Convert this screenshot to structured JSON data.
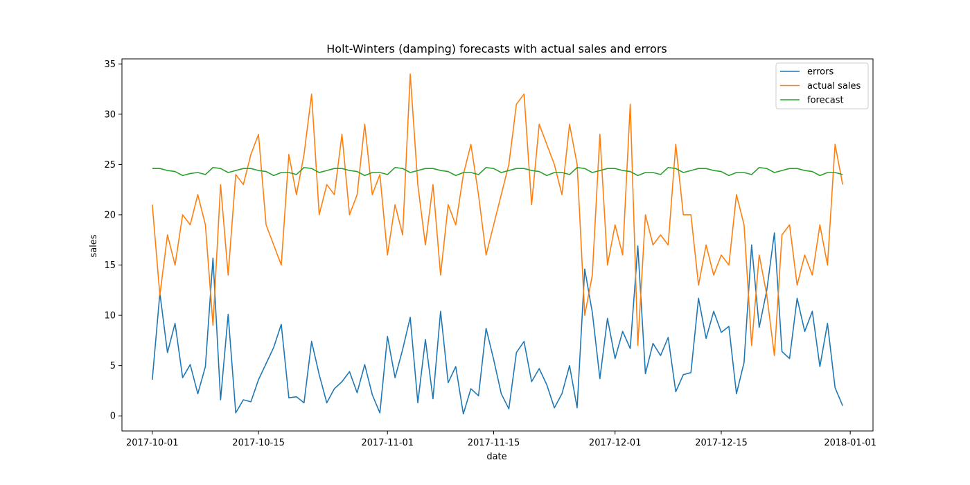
{
  "chart_data": {
    "type": "line",
    "title": "Holt-Winters (damping) forecasts with actual sales and errors",
    "xlabel": "date",
    "ylabel": "sales",
    "xlim": [
      "2017-09-27",
      "2018-01-04"
    ],
    "ylim": [
      -1.5,
      35.5
    ],
    "x_ticks": [
      "2017-10-01",
      "2017-10-15",
      "2017-11-01",
      "2017-11-15",
      "2017-12-01",
      "2017-12-15",
      "2018-01-01"
    ],
    "y_ticks": [
      0,
      5,
      10,
      15,
      20,
      25,
      30,
      35
    ],
    "legend_position": "top-right",
    "x_start": "2017-10-01",
    "x_step_days": 1,
    "series": [
      {
        "name": "errors",
        "color": "#1f77b4",
        "values": [
          3.6,
          12.2,
          6.3,
          9.2,
          3.8,
          5.1,
          2.2,
          4.9,
          15.7,
          1.6,
          10.1,
          0.3,
          1.6,
          1.4,
          3.6,
          5.2,
          6.8,
          9.1,
          1.8,
          1.9,
          1.3,
          7.4,
          4.1,
          1.3,
          2.7,
          3.4,
          4.4,
          2.3,
          5.1,
          2.1,
          0.3,
          7.9,
          3.8,
          6.6,
          9.8,
          1.3,
          7.6,
          1.7,
          10.4,
          3.3,
          4.9,
          0.2,
          2.7,
          2.0,
          8.7,
          5.6,
          2.2,
          0.7,
          6.3,
          7.4,
          3.4,
          4.7,
          3.1,
          0.8,
          2.2,
          5.0,
          0.8,
          14.6,
          10.3,
          3.7,
          9.7,
          5.7,
          8.4,
          6.7,
          16.9,
          4.2,
          7.2,
          6.0,
          7.8,
          2.4,
          4.1,
          4.3,
          11.7,
          7.7,
          10.4,
          8.3,
          8.9,
          2.2,
          5.3,
          17.0,
          8.8,
          12.5,
          18.2,
          6.4,
          5.7,
          11.7,
          8.4,
          10.4,
          4.9,
          9.2,
          2.8,
          1.0
        ],
        "missing_note": ""
      },
      {
        "name": "actual sales",
        "color": "#ff7f0e",
        "values": [
          21,
          12,
          18,
          15,
          20,
          19,
          22,
          19,
          9,
          23,
          14,
          24,
          23,
          26,
          28,
          19,
          17,
          15,
          26,
          22,
          26,
          32,
          20,
          23,
          22,
          28,
          20,
          22,
          29,
          22,
          24,
          16,
          21,
          18,
          34,
          23,
          17,
          23,
          14,
          21,
          19,
          24,
          27,
          22,
          16,
          19,
          22,
          25,
          31,
          32,
          21,
          29,
          27,
          25,
          22,
          29,
          25,
          10,
          14,
          28,
          15,
          19,
          16,
          31,
          7,
          20,
          17,
          18,
          17,
          27,
          20,
          20,
          13,
          17,
          14,
          16,
          15,
          22,
          19,
          7,
          16,
          12,
          6,
          18,
          19,
          13,
          16,
          14,
          19,
          15,
          27,
          23
        ]
      },
      {
        "name": "forecast",
        "color": "#2ca02c",
        "values": [
          24.6,
          24.6,
          24.4,
          24.3,
          23.9,
          24.1,
          24.2,
          24.0,
          24.7,
          24.6,
          24.2,
          24.4,
          24.6,
          24.6,
          24.4,
          24.3,
          23.9,
          24.2,
          24.2,
          24.0,
          24.7,
          24.6,
          24.2,
          24.4,
          24.6,
          24.6,
          24.4,
          24.3,
          23.9,
          24.2,
          24.2,
          24.0,
          24.7,
          24.6,
          24.2,
          24.4,
          24.6,
          24.6,
          24.4,
          24.3,
          23.9,
          24.2,
          24.2,
          24.0,
          24.7,
          24.6,
          24.2,
          24.4,
          24.6,
          24.6,
          24.4,
          24.3,
          23.9,
          24.2,
          24.2,
          24.0,
          24.7,
          24.6,
          24.2,
          24.4,
          24.6,
          24.6,
          24.4,
          24.3,
          23.9,
          24.2,
          24.2,
          24.0,
          24.7,
          24.6,
          24.2,
          24.4,
          24.6,
          24.6,
          24.4,
          24.3,
          23.9,
          24.2,
          24.2,
          24.0,
          24.7,
          24.6,
          24.2,
          24.4,
          24.6,
          24.6,
          24.4,
          24.3,
          23.9,
          24.2,
          24.2,
          24.0
        ]
      }
    ]
  }
}
